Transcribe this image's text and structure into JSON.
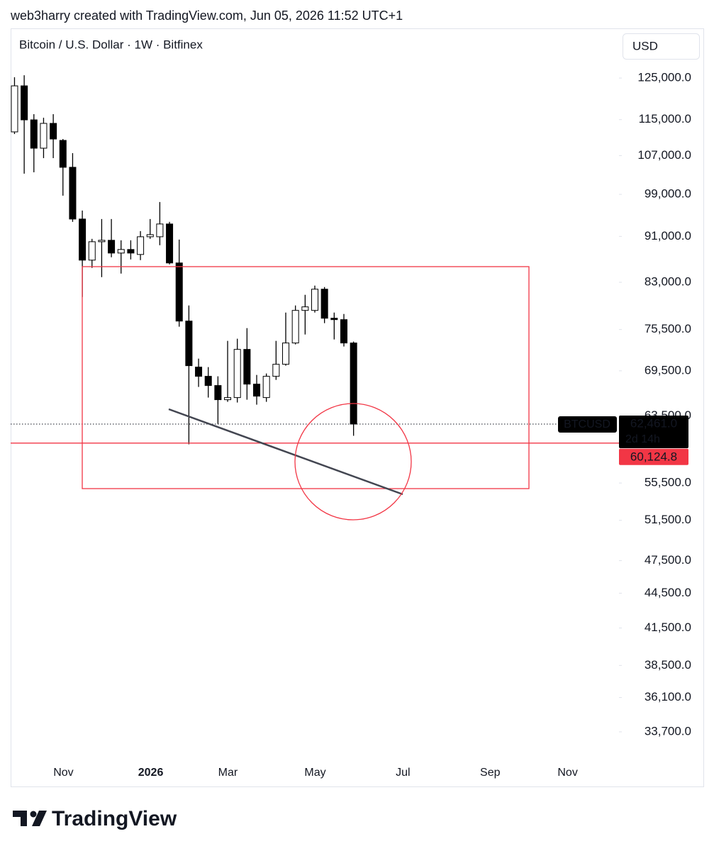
{
  "header": "web3harry created with TradingView.com, Jun 05, 2026 11:52 UTC+1",
  "brand": "TradingView",
  "chart_data": {
    "type": "candlestick",
    "title": "Bitcoin / U.S. Dollar · 1W · Bitfinex",
    "currency": "USD",
    "log_scale": true,
    "grid": false,
    "categories": [
      null,
      null,
      null,
      null,
      null,
      null,
      null,
      null,
      null,
      null,
      null,
      null,
      null,
      null,
      null,
      null,
      null,
      null,
      null,
      null,
      null,
      null,
      null,
      null,
      null,
      null,
      null,
      null,
      null,
      null,
      null,
      null,
      null,
      null,
      null,
      null
    ],
    "series": [
      {
        "name": "BTCUSD",
        "up_color": "#ffffff",
        "down_color": "#000000",
        "border_color": "#000000",
        "open": [
          112210,
          123060,
          114950,
          108600,
          114140,
          110310,
          104520,
          94220,
          86770,
          90030,
          90290,
          88010,
          88640,
          87760,
          90930,
          90930,
          93290,
          86280,
          76790,
          70020,
          68740,
          67480,
          65590,
          65870,
          72550,
          67670,
          65870,
          68740,
          70420,
          73490,
          78450,
          78450,
          81860,
          77230,
          77010,
          73490
        ],
        "high": [
          125200,
          125700,
          116270,
          115440,
          116270,
          110620,
          107530,
          95840,
          90550,
          94220,
          94220,
          90290,
          90290,
          91970,
          94220,
          97490,
          93690,
          90420,
          79230,
          71220,
          70020,
          68740,
          73800,
          74120,
          75710,
          68930,
          69130,
          73800,
          78110,
          79230,
          80940,
          82450,
          82210,
          78110,
          77890,
          73700
        ],
        "low": [
          111730,
          103190,
          103480,
          106460,
          106460,
          98740,
          93690,
          80590,
          85430,
          83860,
          87270,
          84460,
          86890,
          86770,
          90550,
          89400,
          86030,
          75930,
          59980,
          67290,
          65870,
          62500,
          65310,
          65220,
          65590,
          64940,
          65310,
          68250,
          70220,
          73280,
          74750,
          78110,
          76470,
          74010,
          72970,
          61010
        ],
        "close": [
          123060,
          114950,
          108600,
          114140,
          110620,
          104520,
          94220,
          86770,
          90030,
          90290,
          88010,
          88640,
          88010,
          90930,
          91320,
          93290,
          86280,
          76790,
          70220,
          68740,
          67480,
          65590,
          65870,
          72550,
          67670,
          66060,
          68740,
          70420,
          73490,
          78450,
          79010,
          81860,
          77230,
          77010,
          73490,
          62461
        ]
      }
    ],
    "last_price_label": "62,461.0",
    "countdown": "2d 14h",
    "level": {
      "value": 60124.8,
      "label": "60,124.8",
      "color": "#f23645"
    },
    "ylim": [
      31700,
      137700
    ],
    "yticks": [
      {
        "value": 125000,
        "label": "125,000.0"
      },
      {
        "value": 115000,
        "label": "115,000.0"
      },
      {
        "value": 107000,
        "label": "107,000.0"
      },
      {
        "value": 99000,
        "label": "99,000.0"
      },
      {
        "value": 91000,
        "label": "91,000.0"
      },
      {
        "value": 83000,
        "label": "83,000.0"
      },
      {
        "value": 75500,
        "label": "75,500.0"
      },
      {
        "value": 69500,
        "label": "69,500.0"
      },
      {
        "value": 63500,
        "label": "63,500.0"
      },
      {
        "value": 55500,
        "label": "55,500.0"
      },
      {
        "value": 51500,
        "label": "51,500.0"
      },
      {
        "value": 47500,
        "label": "47,500.0"
      },
      {
        "value": 44500,
        "label": "44,500.0"
      },
      {
        "value": 41500,
        "label": "41,500.0"
      },
      {
        "value": 38500,
        "label": "38,500.0"
      },
      {
        "value": 36100,
        "label": "36,100.0"
      },
      {
        "value": 33700,
        "label": "33,700.0"
      }
    ],
    "xlim": [
      -0.4,
      62.4
    ],
    "xticks": [
      {
        "value": 5.05,
        "label": "Nov"
      },
      {
        "value": 14.06,
        "label": "2026"
      },
      {
        "value": 22.03,
        "label": "Mar"
      },
      {
        "value": 31.04,
        "label": "May"
      },
      {
        "value": 40.1,
        "label": "Jul"
      },
      {
        "value": 49.1,
        "label": "Sep"
      },
      {
        "value": 57.1,
        "label": "Nov"
      }
    ]
  }
}
